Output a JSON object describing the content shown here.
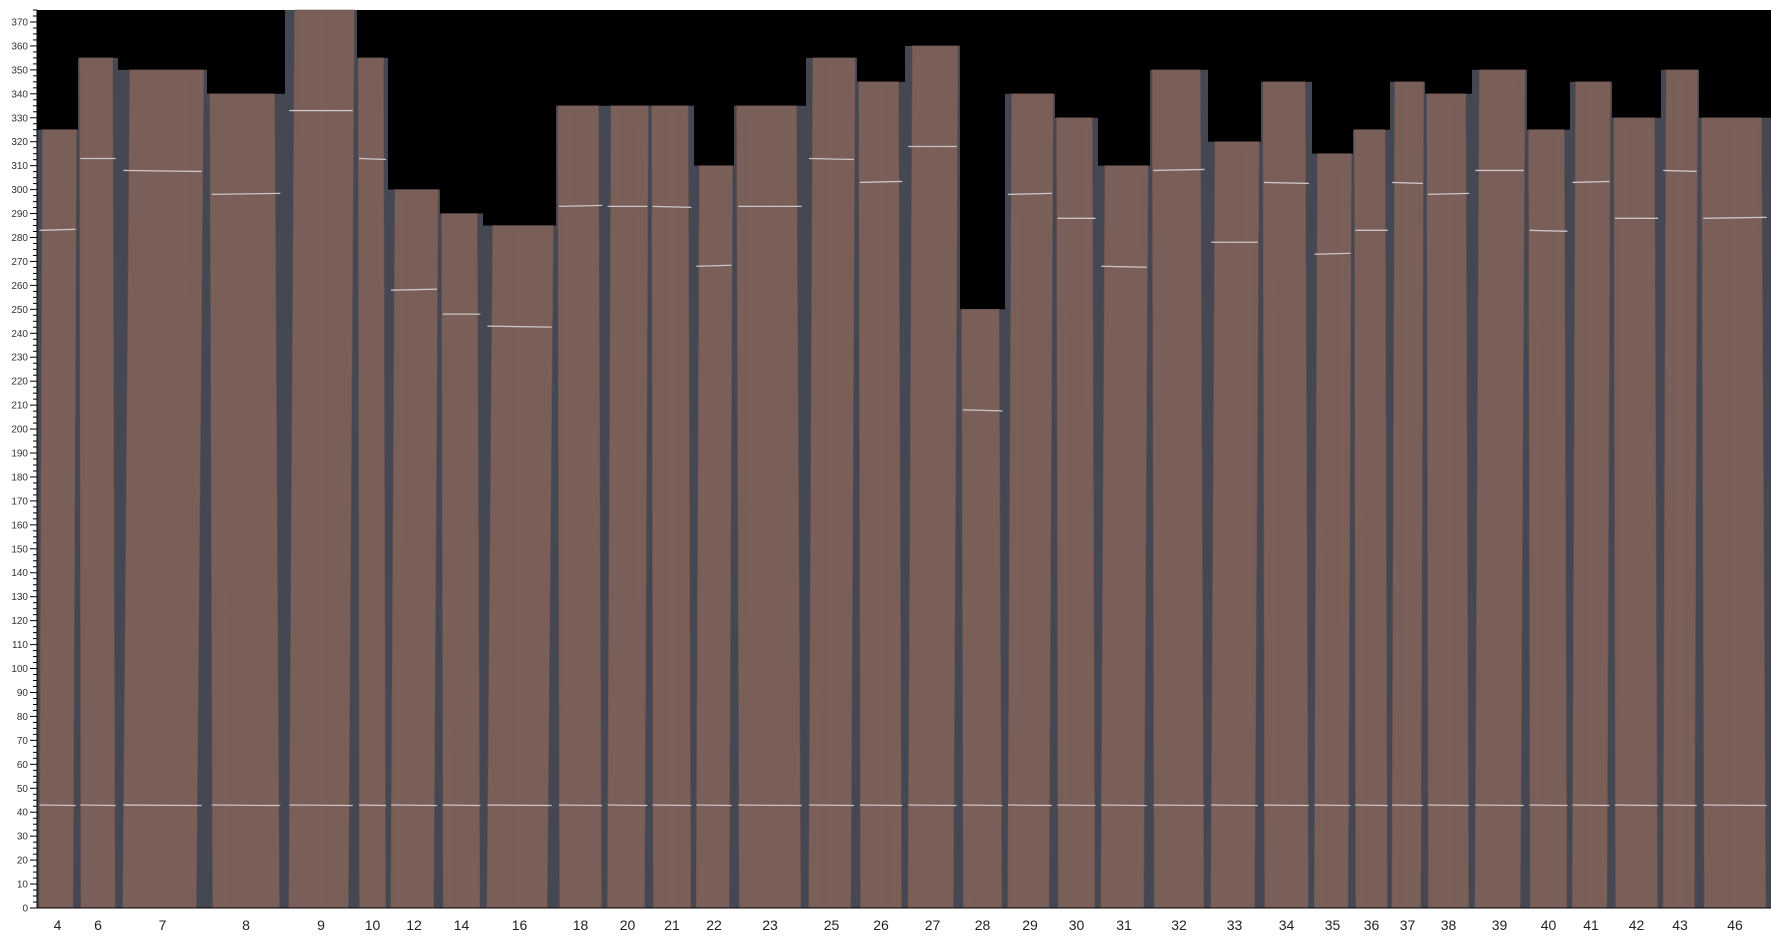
{
  "chart_data": {
    "type": "bar",
    "ylim": [
      0,
      375
    ],
    "y_ticks": [
      0,
      10,
      20,
      30,
      40,
      50,
      60,
      70,
      80,
      90,
      100,
      110,
      120,
      130,
      140,
      150,
      160,
      170,
      180,
      190,
      200,
      210,
      220,
      230,
      240,
      250,
      260,
      270,
      280,
      290,
      300,
      310,
      320,
      330,
      340,
      350,
      360,
      370
    ],
    "categories": [
      "4",
      "6",
      "7",
      "8",
      "9",
      "10",
      "12",
      "14",
      "16",
      "18",
      "20",
      "21",
      "22",
      "23",
      "25",
      "26",
      "27",
      "28",
      "29",
      "30",
      "31",
      "32",
      "33",
      "34",
      "35",
      "36",
      "37",
      "38",
      "39",
      "40",
      "41",
      "42",
      "43",
      "46"
    ],
    "values": [
      325,
      355,
      350,
      340,
      375,
      355,
      300,
      290,
      285,
      335,
      335,
      335,
      310,
      335,
      355,
      345,
      360,
      250,
      340,
      330,
      310,
      350,
      320,
      345,
      315,
      325,
      345,
      340,
      350,
      325,
      345,
      330,
      350,
      330
    ],
    "grid": false,
    "colors": {
      "plot_background": "#000000",
      "plank": "#7a5f59",
      "plank_edge": "#6b524d",
      "shadow": "#454753",
      "marker_line": "#c9c4c8",
      "axis": "#000000"
    }
  }
}
